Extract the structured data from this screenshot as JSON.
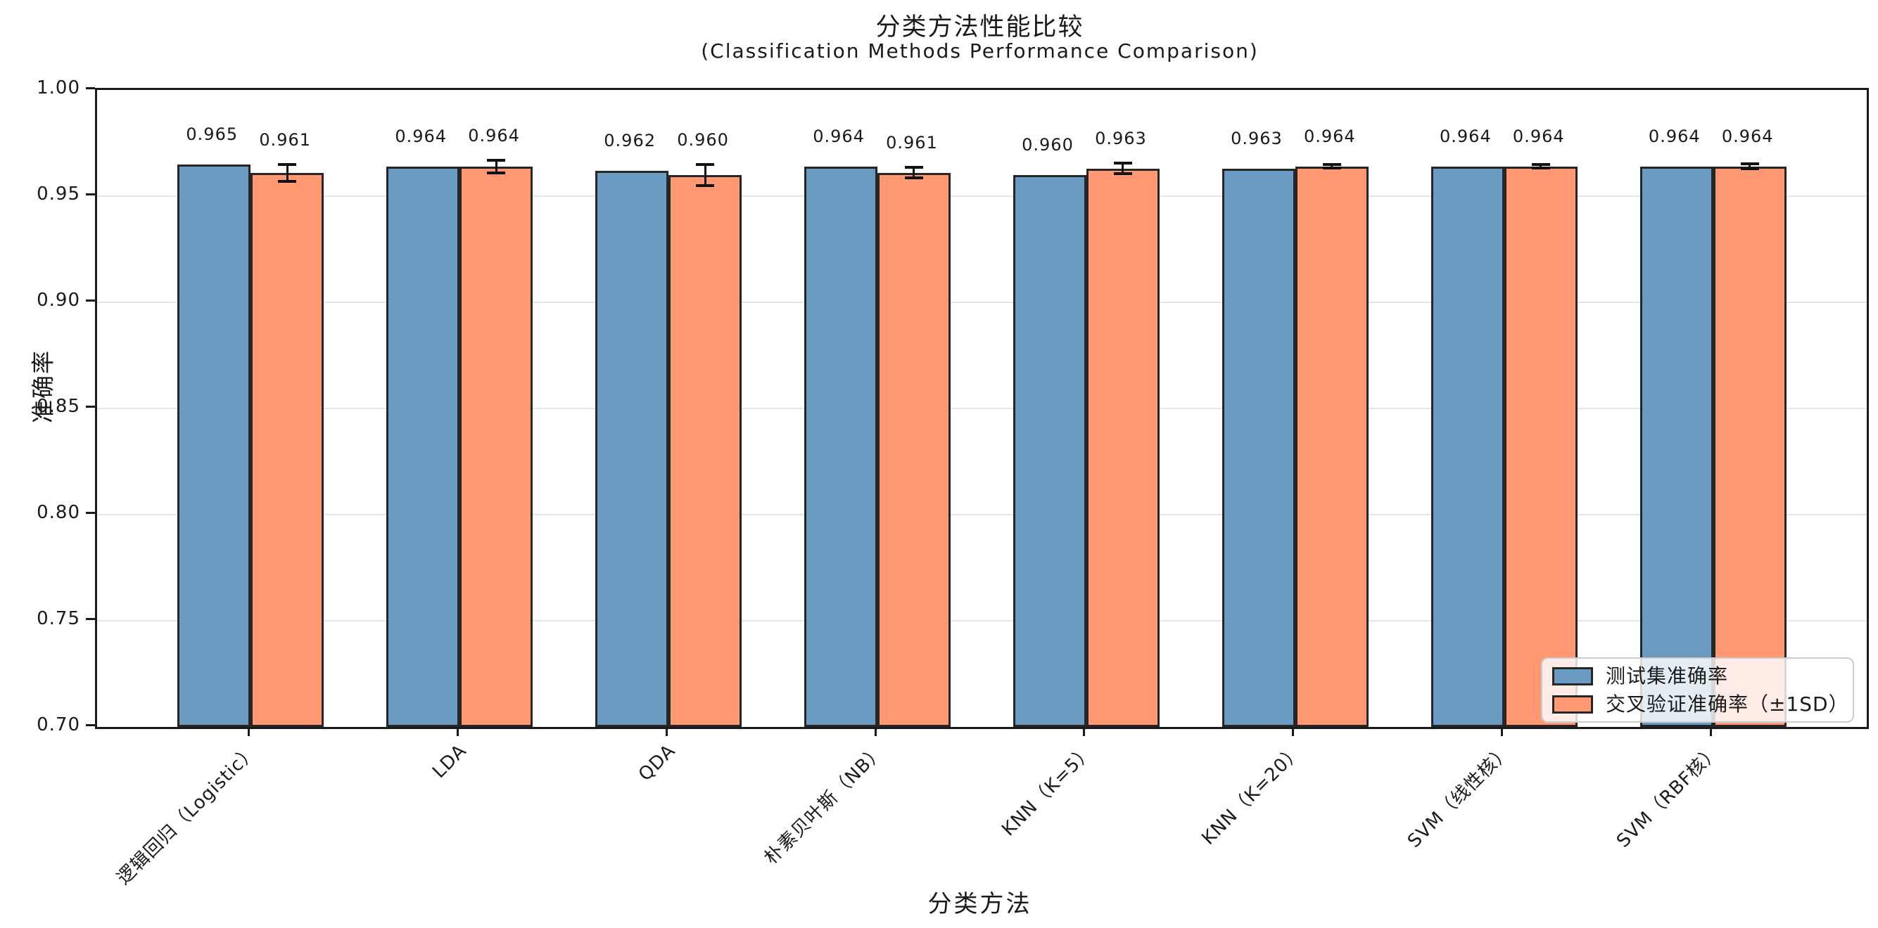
{
  "title": "分类方法性能比较",
  "subtitle": "(Classification Methods Performance Comparison)",
  "chart_data": {
    "type": "bar",
    "title": "分类方法性能比较",
    "subtitle": "(Classification Methods Performance Comparison)",
    "xlabel": "分类方法",
    "ylabel": "准确率",
    "ylim": [
      0.7,
      1.0
    ],
    "yticks": [
      0.7,
      0.75,
      0.8,
      0.85,
      0.9,
      0.95,
      1.0
    ],
    "grid": "horizontal-only",
    "legend_position": "lower-right",
    "bar_edge_color": "#262626",
    "categories": [
      "逻辑回归（Logistic）",
      "LDA",
      "QDA",
      "朴素贝叶斯（NB）",
      "KNN（K=5）",
      "KNN（K=20）",
      "SVM（线性核）",
      "SVM（RBF核）"
    ],
    "series": [
      {
        "name": "测试集准确率",
        "color": "#6B9BC3",
        "values": [
          0.965,
          0.964,
          0.962,
          0.964,
          0.96,
          0.963,
          0.964,
          0.964
        ]
      },
      {
        "name": "交叉验证准确率（±1SD）",
        "color": "#FF9873",
        "values": [
          0.961,
          0.964,
          0.96,
          0.961,
          0.963,
          0.964,
          0.964,
          0.964
        ],
        "errors": [
          0.004,
          0.003,
          0.005,
          0.0025,
          0.0025,
          0.0008,
          0.0008,
          0.0012
        ]
      }
    ]
  }
}
